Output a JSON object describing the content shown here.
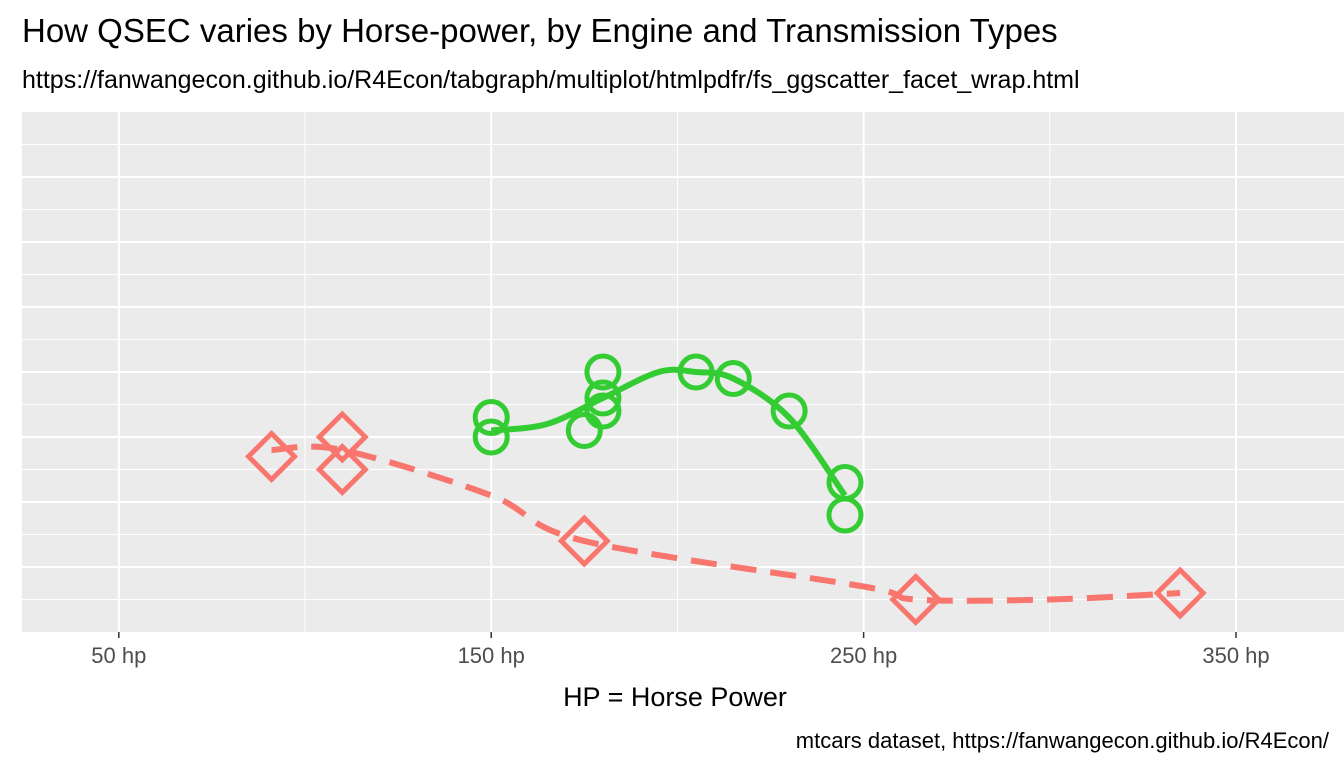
{
  "chart_data": {
    "type": "scatter",
    "title": "How QSEC varies by Horse-power, by Engine and Transmission Types",
    "subtitle": "https://fanwangecon.github.io/R4Econ/tabgraph/multiplot/htmlpdfr/fs_ggscatter_facet_wrap.html",
    "xlabel": "HP = Horse Power",
    "ylabel": "",
    "caption": "mtcars dataset, https://fanwangecon.github.io/R4Econ/",
    "xlim": [
      24,
      379
    ],
    "x_ticks": [
      50,
      150,
      250,
      350
    ],
    "x_tick_labels": [
      "50 hp",
      "150 hp",
      "250 hp",
      "350 hp"
    ],
    "ylim": [
      14,
      22
    ],
    "grid": true,
    "legend": "none",
    "series": [
      {
        "marker": "circle",
        "line": "solid",
        "color": "#33cc33",
        "points": [
          {
            "x": 150,
            "y": 17.0
          },
          {
            "x": 150,
            "y": 17.3
          },
          {
            "x": 175,
            "y": 17.1
          },
          {
            "x": 180,
            "y": 17.4
          },
          {
            "x": 180,
            "y": 17.6
          },
          {
            "x": 180,
            "y": 18.0
          },
          {
            "x": 205,
            "y": 18.0
          },
          {
            "x": 215,
            "y": 17.9
          },
          {
            "x": 230,
            "y": 17.4
          },
          {
            "x": 245,
            "y": 15.8
          },
          {
            "x": 245,
            "y": 16.3
          }
        ],
        "smooth": [
          [
            150,
            17.1
          ],
          [
            165,
            17.2
          ],
          [
            180,
            17.6
          ],
          [
            195,
            18.0
          ],
          [
            205,
            18.0
          ],
          [
            215,
            17.9
          ],
          [
            230,
            17.3
          ],
          [
            245,
            16.1
          ]
        ]
      },
      {
        "marker": "diamond",
        "line": "dashed",
        "color": "#f8766d",
        "points": [
          {
            "x": 91,
            "y": 16.7
          },
          {
            "x": 110,
            "y": 16.5
          },
          {
            "x": 110,
            "y": 17.0
          },
          {
            "x": 175,
            "y": 15.4
          },
          {
            "x": 264,
            "y": 14.5
          },
          {
            "x": 335,
            "y": 14.6
          }
        ],
        "smooth": [
          [
            91,
            16.8
          ],
          [
            110,
            16.8
          ],
          [
            150,
            16.1
          ],
          [
            175,
            15.4
          ],
          [
            250,
            14.7
          ],
          [
            264,
            14.5
          ],
          [
            300,
            14.5
          ],
          [
            335,
            14.6
          ]
        ]
      }
    ]
  }
}
